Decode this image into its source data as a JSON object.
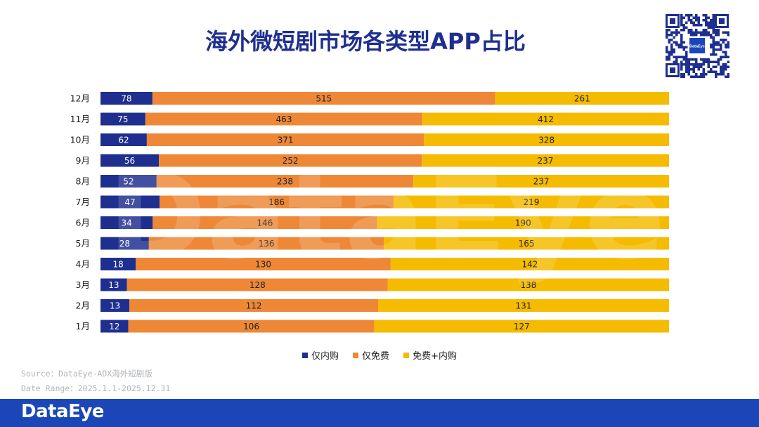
{
  "page": {
    "title": "海外微短剧市场各类型APP占比",
    "source_line": "Source：DataEye-ADX海外短剧版",
    "date_line": "Date Range：2025.1.1-2025.12.31",
    "logo_text": "DataEye",
    "qr_center_label": "DataEye",
    "watermark_text": "DataEye"
  },
  "colors": {
    "iap_only": "#1f2f8f",
    "free_only": "#ee8836",
    "hybrid": "#f5bb00",
    "title": "#1f2f8f",
    "footer": "#1a46b8"
  },
  "chart_data": {
    "type": "bar",
    "orientation": "horizontal",
    "stacked": "percent",
    "title": "海外微短剧市场各类型APP占比",
    "categories": [
      "12月",
      "11月",
      "10月",
      "9月",
      "8月",
      "7月",
      "6月",
      "5月",
      "4月",
      "3月",
      "2月",
      "1月"
    ],
    "series": [
      {
        "name": "仅内购",
        "color": "#1f2f8f",
        "values": [
          78,
          75,
          62,
          56,
          52,
          47,
          34,
          28,
          18,
          13,
          13,
          12
        ]
      },
      {
        "name": "仅免费",
        "color": "#ee8836",
        "values": [
          515,
          463,
          371,
          252,
          238,
          186,
          146,
          136,
          130,
          128,
          112,
          106
        ]
      },
      {
        "name": "免费+内购",
        "color": "#f5bb00",
        "values": [
          261,
          412,
          328,
          237,
          237,
          219,
          190,
          165,
          142,
          138,
          131,
          127
        ]
      }
    ],
    "legend_position": "bottom",
    "grid": false
  }
}
